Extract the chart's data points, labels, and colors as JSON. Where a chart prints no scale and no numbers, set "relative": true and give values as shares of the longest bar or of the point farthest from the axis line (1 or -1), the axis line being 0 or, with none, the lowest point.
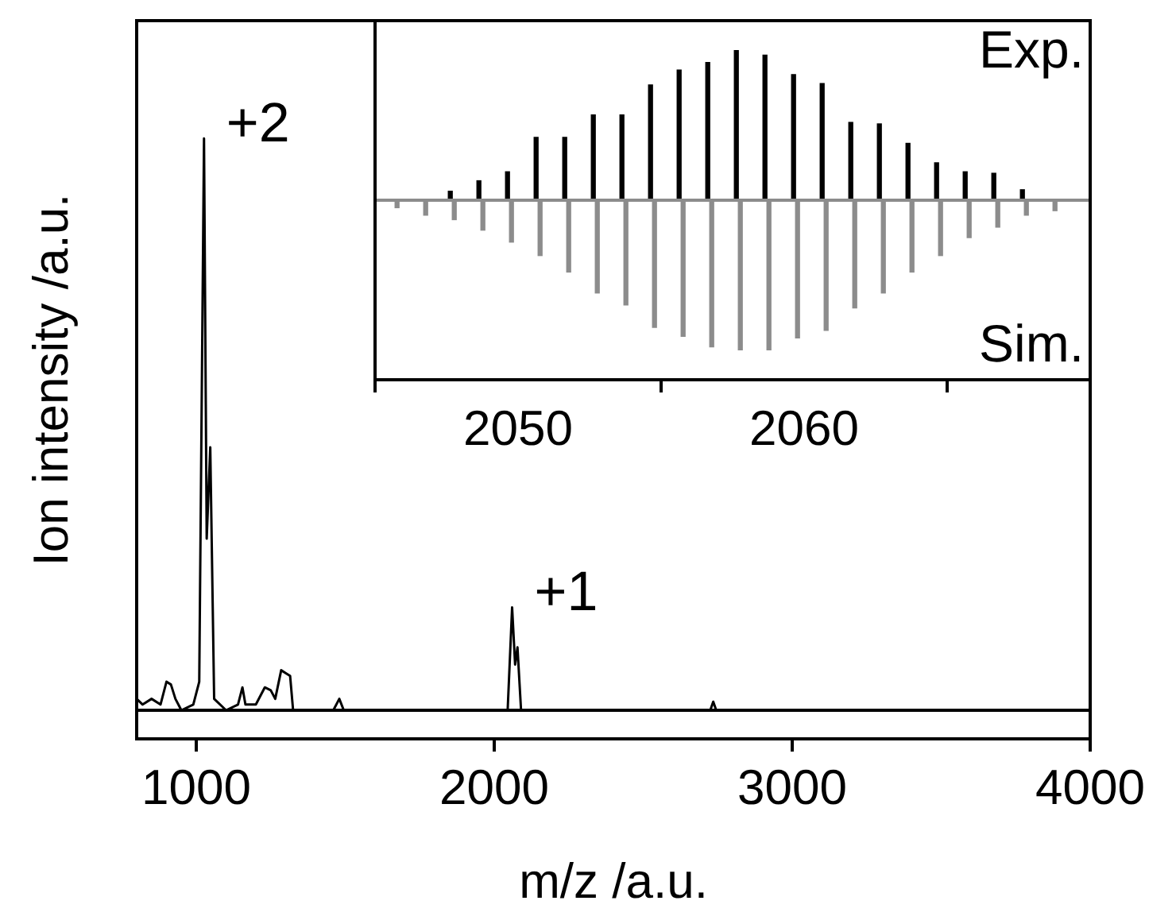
{
  "chart_data": [
    {
      "type": "line",
      "xlabel": "m/z /a.u.",
      "ylabel": "Ion intensity /a.u.",
      "relative": true,
      "xlim": [
        800,
        4000
      ],
      "xticks": [
        1000,
        2000,
        3000,
        4000
      ],
      "series": [
        {
          "color": "#000000",
          "x": [
            800,
            820,
            850,
            880,
            900,
            915,
            930,
            950,
            990,
            1010,
            1026,
            1035,
            1047,
            1060,
            1100,
            1140,
            1155,
            1165,
            1200,
            1230,
            1250,
            1265,
            1285,
            1300,
            1315,
            1325,
            1460,
            1480,
            1495,
            2045,
            2060,
            2070,
            2078,
            2090,
            2725,
            2735,
            2745,
            4000
          ],
          "values": [
            0.02,
            0.01,
            0.02,
            0.01,
            0.05,
            0.045,
            0.02,
            0,
            0.01,
            0.05,
            1,
            0.3,
            0.46,
            0.02,
            0,
            0.01,
            0.04,
            0.01,
            0.01,
            0.04,
            0.035,
            0.02,
            0.07,
            0.065,
            0.06,
            0,
            0,
            0.02,
            0,
            0,
            0.18,
            0.08,
            0.11,
            0,
            0,
            0.015,
            0,
            0
          ]
        }
      ],
      "ref_lines": [
        {
          "axis": "y",
          "value": 0,
          "color": "#000000"
        }
      ],
      "annotations": [
        {
          "text": "+2",
          "x": 1026,
          "y": 1
        },
        {
          "text": "+1",
          "x": 2060,
          "y": 0.18
        }
      ]
    },
    {
      "type": "bar",
      "relative": true,
      "xlim": [
        2045,
        2070
      ],
      "tick_labels": "x",
      "x": [
        2045.7,
        2046.7,
        2047.7,
        2048.7,
        2049.7,
        2050.7,
        2051.7,
        2052.7,
        2053.7,
        2054.7,
        2055.7,
        2056.7,
        2057.7,
        2058.7,
        2059.7,
        2060.7,
        2061.7,
        2062.7,
        2063.7,
        2064.7,
        2065.7,
        2066.7,
        2067.7,
        2068.7
      ],
      "xticks": [
        2050,
        2060
      ],
      "series": [
        {
          "name": "Exp.",
          "color": "#000000",
          "values": [
            0,
            0,
            0.06,
            0.13,
            0.19,
            0.42,
            0.42,
            0.57,
            0.57,
            0.77,
            0.87,
            0.92,
            1.0,
            0.97,
            0.84,
            0.78,
            0.52,
            0.51,
            0.38,
            0.25,
            0.19,
            0.18,
            0.07,
            0
          ]
        },
        {
          "name": "Sim.",
          "color": "#8c8c8c",
          "values": [
            -0.05,
            -0.1,
            -0.13,
            -0.2,
            -0.28,
            -0.37,
            -0.48,
            -0.62,
            -0.7,
            -0.85,
            -0.91,
            -0.98,
            -1.0,
            -1.0,
            -0.92,
            -0.87,
            -0.72,
            -0.62,
            -0.48,
            -0.37,
            -0.25,
            -0.18,
            -0.1,
            -0.07
          ]
        }
      ],
      "ref_lines": [
        {
          "axis": "y",
          "value": 0,
          "color": "#8c8c8c"
        }
      ]
    }
  ]
}
